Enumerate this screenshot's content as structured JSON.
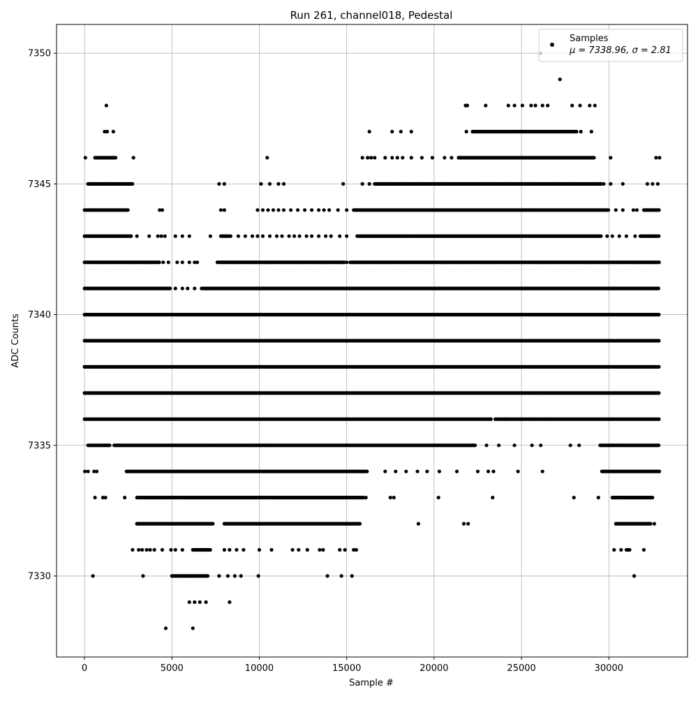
{
  "chart_data": {
    "type": "scatter",
    "title": "Run 261, channel018, Pedestal",
    "xlabel": "Sample #",
    "ylabel": "ADC Counts",
    "xlim": [
      -1600,
      34500
    ],
    "ylim": [
      7326.9,
      7351.1
    ],
    "xticks": [
      0,
      5000,
      10000,
      15000,
      20000,
      25000,
      30000
    ],
    "yticks": [
      7330,
      7335,
      7340,
      7345,
      7350
    ],
    "grid": true,
    "legend": {
      "position": "top-right",
      "entries": [
        {
          "name": "Samples",
          "stat_text": "μ = 7338.96, σ = 2.81"
        }
      ]
    },
    "series": [
      {
        "name": "Samples",
        "color": "#000000",
        "marker": "dot",
        "n_samples": 32768,
        "bands": [
          {
            "y": 7328,
            "ranges": []
          },
          {
            "y": 7329,
            "ranges": []
          },
          {
            "y": 7330,
            "ranges": [
              [
                5000,
                7100
              ]
            ]
          },
          {
            "y": 7331,
            "ranges": [
              [
                6200,
                7200
              ],
              [
                31000,
                31200
              ]
            ]
          },
          {
            "y": 7332,
            "ranges": [
              [
                3000,
                7400
              ],
              [
                8000,
                15800
              ],
              [
                30400,
                32400
              ]
            ]
          },
          {
            "y": 7333,
            "ranges": [
              [
                3000,
                16000
              ],
              [
                30200,
                32500
              ]
            ]
          },
          {
            "y": 7334,
            "ranges": [
              [
                2400,
                16200
              ],
              [
                29600,
                32900
              ]
            ]
          },
          {
            "y": 7335,
            "ranges": [
              [
                200,
                1500
              ],
              [
                1700,
                22400
              ],
              [
                29500,
                32900
              ]
            ]
          },
          {
            "y": 7336,
            "ranges": [
              [
                0,
                23300
              ],
              [
                23500,
                32900
              ]
            ]
          },
          {
            "y": 7337,
            "ranges": [
              [
                0,
                32900
              ]
            ]
          },
          {
            "y": 7338,
            "ranges": [
              [
                0,
                32900
              ]
            ]
          },
          {
            "y": 7339,
            "ranges": [
              [
                0,
                32900
              ]
            ]
          },
          {
            "y": 7340,
            "ranges": [
              [
                0,
                32900
              ]
            ]
          },
          {
            "y": 7341,
            "ranges": [
              [
                0,
                4900
              ],
              [
                6800,
                32900
              ]
            ]
          },
          {
            "y": 7342,
            "ranges": [
              [
                0,
                4300
              ],
              [
                7600,
                14900
              ],
              [
                15200,
                32900
              ]
            ]
          },
          {
            "y": 7343,
            "ranges": [
              [
                0,
                2700
              ],
              [
                7800,
                8400
              ],
              [
                15600,
                29600
              ],
              [
                31800,
                32900
              ]
            ]
          },
          {
            "y": 7344,
            "ranges": [
              [
                0,
                2500
              ],
              [
                15400,
                30000
              ],
              [
                32000,
                32900
              ]
            ]
          },
          {
            "y": 7345,
            "ranges": [
              [
                200,
                2800
              ],
              [
                16600,
                29600
              ]
            ]
          },
          {
            "y": 7346,
            "ranges": [
              [
                600,
                1800
              ],
              [
                21400,
                29200
              ]
            ]
          },
          {
            "y": 7347,
            "ranges": [
              [
                22200,
                28200
              ]
            ]
          },
          {
            "y": 7348,
            "ranges": []
          },
          {
            "y": 7349,
            "ranges": []
          },
          {
            "y": 7350,
            "ranges": []
          }
        ],
        "sparse_points": [
          [
            4650,
            7328
          ],
          [
            6200,
            7328
          ],
          [
            6000,
            7329
          ],
          [
            6300,
            7329
          ],
          [
            6600,
            7329
          ],
          [
            6950,
            7329
          ],
          [
            8300,
            7329
          ],
          [
            480,
            7330
          ],
          [
            3350,
            7330
          ],
          [
            7700,
            7330
          ],
          [
            8200,
            7330
          ],
          [
            8600,
            7330
          ],
          [
            8950,
            7330
          ],
          [
            9950,
            7330
          ],
          [
            13900,
            7330
          ],
          [
            14700,
            7330
          ],
          [
            15300,
            7330
          ],
          [
            31450,
            7330
          ],
          [
            2750,
            7331
          ],
          [
            3100,
            7331
          ],
          [
            3300,
            7331
          ],
          [
            3550,
            7331
          ],
          [
            3750,
            7331
          ],
          [
            4000,
            7331
          ],
          [
            4450,
            7331
          ],
          [
            4950,
            7331
          ],
          [
            5200,
            7331
          ],
          [
            5600,
            7331
          ],
          [
            8000,
            7331
          ],
          [
            8300,
            7331
          ],
          [
            8700,
            7331
          ],
          [
            9100,
            7331
          ],
          [
            10000,
            7331
          ],
          [
            10700,
            7331
          ],
          [
            11900,
            7331
          ],
          [
            12250,
            7331
          ],
          [
            12750,
            7331
          ],
          [
            13450,
            7331
          ],
          [
            13650,
            7331
          ],
          [
            14600,
            7331
          ],
          [
            14900,
            7331
          ],
          [
            15400,
            7331
          ],
          [
            15550,
            7331
          ],
          [
            30300,
            7331
          ],
          [
            30700,
            7331
          ],
          [
            32000,
            7331
          ],
          [
            19100,
            7332
          ],
          [
            21700,
            7332
          ],
          [
            21950,
            7332
          ],
          [
            32600,
            7332
          ],
          [
            600,
            7333
          ],
          [
            1050,
            7333
          ],
          [
            1200,
            7333
          ],
          [
            2300,
            7333
          ],
          [
            16100,
            7333
          ],
          [
            17500,
            7333
          ],
          [
            17700,
            7333
          ],
          [
            20250,
            7333
          ],
          [
            23350,
            7333
          ],
          [
            28000,
            7333
          ],
          [
            29400,
            7333
          ],
          [
            20,
            7334
          ],
          [
            200,
            7334
          ],
          [
            550,
            7334
          ],
          [
            700,
            7334
          ],
          [
            17200,
            7334
          ],
          [
            17800,
            7334
          ],
          [
            18400,
            7334
          ],
          [
            19050,
            7334
          ],
          [
            19600,
            7334
          ],
          [
            20300,
            7334
          ],
          [
            21300,
            7334
          ],
          [
            22500,
            7334
          ],
          [
            23100,
            7334
          ],
          [
            23400,
            7334
          ],
          [
            24800,
            7334
          ],
          [
            26200,
            7334
          ],
          [
            23000,
            7335
          ],
          [
            23700,
            7335
          ],
          [
            24600,
            7335
          ],
          [
            25600,
            7335
          ],
          [
            26100,
            7335
          ],
          [
            27800,
            7335
          ],
          [
            28300,
            7335
          ],
          [
            23250,
            7336
          ],
          [
            24100,
            7336
          ],
          [
            25500,
            7336
          ],
          [
            26600,
            7336
          ],
          [
            5200,
            7341
          ],
          [
            5600,
            7341
          ],
          [
            5900,
            7341
          ],
          [
            6300,
            7341
          ],
          [
            6700,
            7341
          ],
          [
            4500,
            7342
          ],
          [
            4800,
            7342
          ],
          [
            5300,
            7342
          ],
          [
            5600,
            7342
          ],
          [
            6000,
            7342
          ],
          [
            6300,
            7342
          ],
          [
            6450,
            7342
          ],
          [
            15000,
            7342
          ],
          [
            3000,
            7343
          ],
          [
            3700,
            7343
          ],
          [
            4200,
            7343
          ],
          [
            4400,
            7343
          ],
          [
            4600,
            7343
          ],
          [
            5200,
            7343
          ],
          [
            5600,
            7343
          ],
          [
            6000,
            7343
          ],
          [
            7200,
            7343
          ],
          [
            8800,
            7343
          ],
          [
            9200,
            7343
          ],
          [
            9600,
            7343
          ],
          [
            9900,
            7343
          ],
          [
            10200,
            7343
          ],
          [
            10600,
            7343
          ],
          [
            11000,
            7343
          ],
          [
            11300,
            7343
          ],
          [
            11700,
            7343
          ],
          [
            12000,
            7343
          ],
          [
            12300,
            7343
          ],
          [
            12700,
            7343
          ],
          [
            13000,
            7343
          ],
          [
            13400,
            7343
          ],
          [
            13800,
            7343
          ],
          [
            14100,
            7343
          ],
          [
            14600,
            7343
          ],
          [
            15000,
            7343
          ],
          [
            29900,
            7343
          ],
          [
            30200,
            7343
          ],
          [
            30600,
            7343
          ],
          [
            31000,
            7343
          ],
          [
            31500,
            7343
          ],
          [
            4300,
            7344
          ],
          [
            4450,
            7344
          ],
          [
            7800,
            7344
          ],
          [
            8000,
            7344
          ],
          [
            9900,
            7344
          ],
          [
            10200,
            7344
          ],
          [
            10500,
            7344
          ],
          [
            10800,
            7344
          ],
          [
            11100,
            7344
          ],
          [
            11400,
            7344
          ],
          [
            11800,
            7344
          ],
          [
            12200,
            7344
          ],
          [
            12600,
            7344
          ],
          [
            13000,
            7344
          ],
          [
            13400,
            7344
          ],
          [
            13700,
            7344
          ],
          [
            14000,
            7344
          ],
          [
            14500,
            7344
          ],
          [
            15000,
            7344
          ],
          [
            30400,
            7344
          ],
          [
            30800,
            7344
          ],
          [
            31400,
            7344
          ],
          [
            31600,
            7344
          ],
          [
            7700,
            7345
          ],
          [
            8000,
            7345
          ],
          [
            10100,
            7345
          ],
          [
            10600,
            7345
          ],
          [
            11100,
            7345
          ],
          [
            11400,
            7345
          ],
          [
            14800,
            7345
          ],
          [
            15900,
            7345
          ],
          [
            16300,
            7345
          ],
          [
            29700,
            7345
          ],
          [
            30100,
            7345
          ],
          [
            30800,
            7345
          ],
          [
            32200,
            7345
          ],
          [
            32500,
            7345
          ],
          [
            32800,
            7345
          ],
          [
            50,
            7346
          ],
          [
            2800,
            7346
          ],
          [
            10450,
            7346
          ],
          [
            15900,
            7346
          ],
          [
            16200,
            7346
          ],
          [
            16400,
            7346
          ],
          [
            16600,
            7346
          ],
          [
            17200,
            7346
          ],
          [
            17600,
            7346
          ],
          [
            17900,
            7346
          ],
          [
            18200,
            7346
          ],
          [
            18700,
            7346
          ],
          [
            19300,
            7346
          ],
          [
            19900,
            7346
          ],
          [
            20600,
            7346
          ],
          [
            21000,
            7346
          ],
          [
            30100,
            7346
          ],
          [
            32700,
            7346
          ],
          [
            32900,
            7346
          ],
          [
            1150,
            7347
          ],
          [
            1300,
            7347
          ],
          [
            1650,
            7347
          ],
          [
            16300,
            7347
          ],
          [
            17600,
            7347
          ],
          [
            18100,
            7347
          ],
          [
            18700,
            7347
          ],
          [
            21850,
            7347
          ],
          [
            28400,
            7347
          ],
          [
            29000,
            7347
          ],
          [
            1250,
            7348
          ],
          [
            21800,
            7348
          ],
          [
            21900,
            7348
          ],
          [
            22950,
            7348
          ],
          [
            24250,
            7348
          ],
          [
            24600,
            7348
          ],
          [
            25050,
            7348
          ],
          [
            25550,
            7348
          ],
          [
            25800,
            7348
          ],
          [
            26200,
            7348
          ],
          [
            26500,
            7348
          ],
          [
            27900,
            7348
          ],
          [
            28350,
            7348
          ],
          [
            28900,
            7348
          ],
          [
            29200,
            7348
          ],
          [
            27200,
            7349
          ],
          [
            26100,
            7350
          ]
        ]
      }
    ]
  }
}
